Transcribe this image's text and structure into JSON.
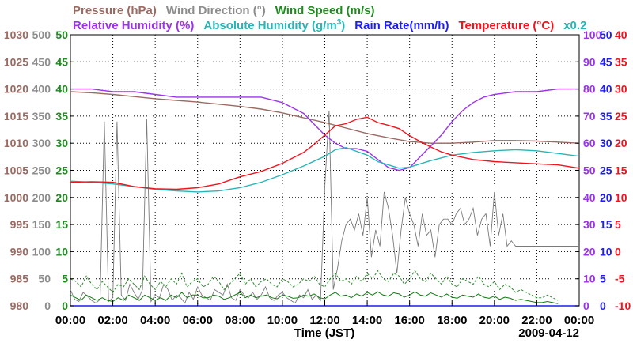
{
  "chart_data": {
    "type": "line",
    "date": "2009-04-12",
    "xlabel": "Time (JST)",
    "x_tick_labels": [
      "00:00",
      "02:00",
      "04:00",
      "06:00",
      "08:00",
      "10:00",
      "12:00",
      "14:00",
      "16:00",
      "18:00",
      "20:00",
      "22:00",
      "00:00"
    ],
    "xlim_hours": [
      0,
      24
    ],
    "grid": true,
    "legend_placement": "top, two rows of colored labels",
    "legend_row1": [
      {
        "text": "Pressure (hPa)",
        "color": "#9b6a62"
      },
      {
        "text": "Wind Direction (°)",
        "color": "#8c8c8c"
      },
      {
        "text": "Wind Speed (m/s)",
        "color": "#1f8a1f"
      }
    ],
    "legend_row2": [
      {
        "text": "Relative Humidity (%)",
        "color": "#9b33ea"
      },
      {
        "text": "Absolute Humidity (g/m",
        "sup": "3",
        "close": ")",
        "color": "#29b5b5"
      },
      {
        "text": "Rain Rate(mm/h)",
        "color": "#1d1df0"
      },
      {
        "text": "Temperature (°C)",
        "color": "#f0141e"
      },
      {
        "text": "x0.2",
        "color": "#29b5b5"
      }
    ],
    "axes": {
      "pressure": {
        "color": "#9b6a62",
        "range": [
          980,
          1030
        ],
        "ticks": [
          "1030",
          "1025",
          "1020",
          "1015",
          "1010",
          "1005",
          "1000",
          "995",
          "990",
          "985",
          "980"
        ]
      },
      "wind_direction": {
        "color": "#8c8c8c",
        "range": [
          0,
          500
        ],
        "ticks": [
          "500",
          "450",
          "400",
          "350",
          "300",
          "250",
          "200",
          "150",
          "100",
          "50",
          "0"
        ]
      },
      "wind_speed": {
        "color": "#1f8a1f",
        "range": [
          0,
          50
        ],
        "ticks": [
          "50",
          "45",
          "40",
          "35",
          "30",
          "25",
          "20",
          "15",
          "10",
          "5",
          "0"
        ]
      },
      "relative_humidity": {
        "color": "#9b33ea",
        "range": [
          0,
          100
        ],
        "ticks": [
          "100",
          "90",
          "80",
          "70",
          "60",
          "50",
          "40",
          "30",
          "20",
          "10",
          "0"
        ]
      },
      "rain_rate": {
        "color": "#1d1df0",
        "range": [
          0,
          50
        ],
        "ticks": [
          "50",
          "45",
          "40",
          "35",
          "30",
          "25",
          "20",
          "15",
          "10",
          "5",
          "0"
        ]
      },
      "temperature": {
        "color": "#f0141e",
        "range": [
          -10,
          40
        ],
        "ticks": [
          "40",
          "35",
          "30",
          "25",
          "20",
          "15",
          "10",
          "5",
          "0",
          "-5",
          "-10"
        ]
      }
    },
    "series": [
      {
        "name": "Pressure (hPa)",
        "axis": "pressure",
        "color": "#9b6a62",
        "x": [
          0,
          1,
          2,
          3,
          4,
          5,
          6,
          7,
          8,
          9,
          10,
          11,
          12,
          13,
          14,
          15,
          16,
          17,
          18,
          19,
          20,
          21,
          22,
          23,
          24
        ],
        "y": [
          1019.5,
          1019.3,
          1019.0,
          1018.6,
          1018.2,
          1017.9,
          1017.6,
          1017.2,
          1016.8,
          1016.3,
          1015.6,
          1014.7,
          1013.8,
          1012.8,
          1011.8,
          1011.0,
          1010.3,
          1010.0,
          1010.0,
          1010.2,
          1010.5,
          1010.5,
          1010.4,
          1010.2,
          1010.0
        ]
      },
      {
        "name": "Relative Humidity (%)",
        "axis": "relative_humidity",
        "color": "#9b33ea",
        "x": [
          0,
          1,
          2,
          3,
          4,
          5,
          6,
          7,
          8,
          9,
          9.5,
          10,
          10.5,
          11,
          11.5,
          12,
          12.5,
          13,
          13.5,
          14,
          14.5,
          15,
          15.5,
          16,
          16.5,
          17,
          17.5,
          18,
          18.5,
          19,
          19.5,
          20,
          21,
          22,
          23,
          24
        ],
        "y": [
          80,
          80,
          79,
          79,
          78,
          77,
          77,
          77,
          77,
          77,
          76,
          75,
          73,
          71,
          67,
          63,
          60,
          58,
          58,
          57,
          54,
          51,
          50,
          51,
          55,
          59,
          63,
          68,
          72,
          75,
          77,
          78,
          79,
          79,
          80,
          80
        ]
      },
      {
        "name": "Absolute Humidity",
        "axis": "temperature",
        "color": "#29b5b5",
        "x": [
          0,
          1,
          2,
          3,
          4,
          5,
          6,
          7,
          8,
          9,
          10,
          11,
          12,
          12.5,
          13,
          13.5,
          14,
          14.5,
          15,
          15.5,
          16,
          16.5,
          17,
          18,
          19,
          20,
          21,
          22,
          23,
          24
        ],
        "y": [
          13,
          12.8,
          12.5,
          12,
          11.5,
          11.2,
          11,
          11.2,
          11.8,
          12.8,
          14.2,
          15.8,
          17.6,
          18.8,
          19.2,
          18.5,
          17.8,
          16.6,
          16,
          15.4,
          15.6,
          16.2,
          16.8,
          17.8,
          18.3,
          18.6,
          18.8,
          18.6,
          18.1,
          17.6
        ]
      },
      {
        "name": "Temperature (°C)",
        "axis": "temperature",
        "color": "#f0141e",
        "x": [
          0,
          1,
          2,
          3,
          4,
          5,
          6,
          7,
          8,
          9,
          10,
          11,
          11.5,
          12,
          12.5,
          13,
          13.5,
          14,
          14.5,
          15,
          15.5,
          16,
          16.5,
          17,
          17.5,
          18,
          19,
          20,
          21,
          22,
          23,
          24
        ],
        "y": [
          12.8,
          12.9,
          12.8,
          12,
          11.6,
          11.5,
          11.8,
          12.5,
          13.8,
          14.8,
          16.3,
          18.3,
          19.8,
          21.5,
          23.2,
          23.6,
          24.4,
          24.8,
          23.8,
          23.3,
          22.7,
          21.4,
          20.3,
          19.3,
          18.4,
          17.8,
          17,
          16.6,
          16.4,
          16.2,
          16,
          15.4
        ]
      },
      {
        "name": "Rain Rate(mm/h)",
        "axis": "rain_rate",
        "color": "#1d1df0",
        "x": [
          0,
          24
        ],
        "y": [
          0,
          0
        ]
      }
    ],
    "wind_direction_samples": {
      "axis": "wind_direction",
      "color": "#7a7a7a",
      "x_start": 0,
      "x_step": 0.2,
      "y": [
        30,
        12,
        8,
        25,
        18,
        10,
        5,
        12,
        340,
        8,
        15,
        340,
        20,
        10,
        40,
        25,
        12,
        30,
        345,
        8,
        20,
        15,
        40,
        30,
        10,
        20,
        15,
        5,
        25,
        12,
        35,
        20,
        15,
        10,
        30,
        25,
        20,
        40,
        15,
        10,
        30,
        20,
        15,
        25,
        12,
        20,
        35,
        15,
        10,
        20,
        25,
        15,
        10,
        5,
        20,
        15,
        30,
        12,
        20,
        10,
        220,
        360,
        30,
        70,
        120,
        150,
        160,
        140,
        170,
        130,
        200,
        90,
        140,
        110,
        210,
        180,
        130,
        60,
        140,
        200,
        170,
        150,
        110,
        170,
        130,
        140,
        90,
        150,
        160,
        160,
        150,
        170,
        180,
        150,
        160,
        180,
        130,
        160,
        170,
        110,
        210,
        130,
        170,
        110,
        120,
        110,
        110,
        110,
        110,
        110,
        110,
        110,
        110,
        110,
        110,
        110,
        110,
        110,
        110,
        110,
        110
      ]
    },
    "wind_speed_max_samples": {
      "axis": "wind_speed",
      "color": "#2a8c2a",
      "dashed": true,
      "x_start": 0,
      "x_step": 0.25,
      "y": [
        5,
        4.5,
        3.5,
        5.5,
        4,
        3,
        4.5,
        3.5,
        2.5,
        4,
        3.5,
        5,
        4,
        3,
        5.5,
        4,
        3,
        4.5,
        3.5,
        5,
        4,
        6,
        3.5,
        4.5,
        5,
        3.5,
        4,
        5.5,
        4.5,
        3,
        4,
        5,
        6,
        4,
        5,
        3.5,
        4.5,
        5,
        4,
        3.5,
        5,
        4.5,
        3.5,
        4,
        5,
        4.5,
        5.5,
        4,
        3.5,
        5,
        6,
        4.5,
        5,
        4,
        5.5,
        4.5,
        6,
        5,
        6.5,
        5,
        4.5,
        6,
        5.5,
        4,
        5,
        6.5,
        5,
        4.5,
        6,
        5,
        4,
        5.5,
        4,
        3.5,
        5,
        4.5,
        4,
        5.5,
        4,
        3.5,
        4.5,
        3,
        4,
        3.5,
        2.5,
        3,
        2.5,
        2,
        1.5,
        1.5,
        2,
        1.5,
        1
      ]
    },
    "wind_speed_mean_samples": {
      "axis": "wind_speed",
      "color": "#0e7a0e",
      "dashed": false,
      "x_start": 0,
      "x_step": 0.25,
      "y": [
        2,
        1.5,
        1,
        2,
        1.5,
        1,
        1.5,
        1,
        0.8,
        1.5,
        1,
        2,
        1.5,
        1,
        2,
        1.5,
        1,
        1.5,
        1,
        2,
        1.5,
        2.5,
        1.5,
        2,
        2,
        1.5,
        1.5,
        2,
        1.8,
        1.2,
        1.5,
        2,
        2.5,
        1.5,
        2,
        1.5,
        1.8,
        2,
        1.5,
        1.3,
        2,
        1.8,
        1.4,
        1.5,
        2,
        1.8,
        2.2,
        1.5,
        1.3,
        2,
        2.5,
        1.8,
        2,
        1.5,
        2.2,
        1.8,
        2.5,
        2,
        2.6,
        2,
        1.8,
        2.4,
        2.2,
        1.6,
        2,
        2.6,
        2,
        1.8,
        2.4,
        2,
        1.6,
        2.2,
        1.6,
        1.4,
        2,
        1.8,
        1.6,
        2.2,
        1.6,
        1.4,
        1.8,
        1.2,
        1.6,
        1.4,
        1,
        1.2,
        1,
        0.8,
        0.6,
        0.6,
        0.8,
        0.6,
        0.4
      ]
    }
  }
}
